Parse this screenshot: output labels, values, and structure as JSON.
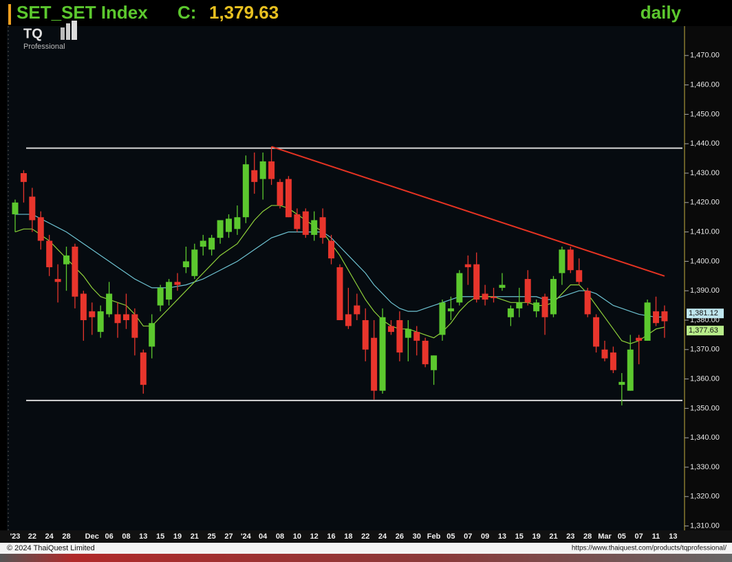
{
  "chart_data": {
    "type": "candlestick",
    "symbol": "SET_SET Index",
    "close_prefix": "C:",
    "last_close_label": "1,379.63",
    "timeframe": "daily",
    "logo": "TQ",
    "logo_sub": "Professional",
    "copyright": "© 2024 ThaiQuest Limited",
    "url": "https://www.thaiquest.com/products/tqprofessional/",
    "categories": [
      "'23",
      null,
      "22",
      null,
      "24",
      null,
      "28",
      null,
      null,
      "Dec",
      null,
      "06",
      null,
      "08",
      null,
      "13",
      null,
      "15",
      null,
      "19",
      null,
      "21",
      null,
      "25",
      null,
      "27",
      null,
      "'24",
      null,
      "04",
      null,
      "08",
      null,
      "10",
      null,
      "12",
      null,
      "16",
      null,
      "18",
      null,
      "22",
      null,
      "24",
      null,
      "26",
      null,
      "30",
      null,
      "Feb",
      null,
      "05",
      null,
      "07",
      null,
      "09",
      null,
      "13",
      null,
      "15",
      null,
      "19",
      null,
      "21",
      null,
      "23",
      null,
      "28",
      null,
      "Mar",
      null,
      "05",
      null,
      "07",
      null,
      "11",
      null,
      "13"
    ],
    "open": [
      1416,
      1430,
      1422,
      1415,
      1407,
      1394,
      1399,
      1405,
      1389,
      1383,
      1376,
      1382,
      1382,
      1382,
      1382,
      1369,
      1371,
      1385,
      1387,
      1393,
      1398,
      1395,
      1405,
      1404,
      1408,
      1410,
      1411,
      1415,
      1431,
      1428,
      1434,
      1427,
      1428,
      1416,
      1417,
      1409,
      1415,
      1407,
      1398,
      1382,
      1385,
      1380,
      1374,
      1356,
      1378,
      1380,
      1374,
      1376,
      1373,
      1363,
      1375,
      1383,
      1386,
      1399,
      1399,
      1389,
      1388,
      1391,
      1381,
      1384,
      1394,
      1383,
      1388,
      1382,
      1396,
      1404,
      1397,
      1390,
      1381,
      1370,
      1369,
      1358,
      1356,
      1374,
      1373,
      1383,
      1383,
      null
    ],
    "high": [
      1421,
      1431,
      1425,
      1417,
      1409,
      1399,
      1405,
      1406,
      1390,
      1386,
      1385,
      1393,
      1386,
      1389,
      1384,
      1370,
      1382,
      1392,
      1394,
      1396,
      1405,
      1406,
      1409,
      1409,
      1414,
      1416,
      1419,
      1436,
      1437,
      1437,
      1439,
      1428,
      1429,
      1418,
      1418,
      1417,
      1418,
      1409,
      1399,
      1391,
      1389,
      1384,
      1380,
      1384,
      1380,
      1383,
      1380,
      1378,
      1374,
      1368,
      1387,
      1388,
      1397,
      1402,
      1403,
      1392,
      1391,
      1396,
      1385,
      1391,
      1397,
      1387,
      1389,
      1395,
      1405,
      1405,
      1401,
      1391,
      1382,
      1373,
      1371,
      1362,
      1375,
      1375,
      1387,
      1388,
      1385,
      null
    ],
    "low": [
      1410,
      1420,
      1410,
      1404,
      1395,
      1386,
      1390,
      1384,
      1373,
      1375,
      1374,
      1381,
      1374,
      1377,
      1368,
      1355,
      1367,
      1383,
      1385,
      1390,
      1396,
      1394,
      1402,
      1402,
      1406,
      1408,
      1409,
      1413,
      1423,
      1421,
      1426,
      1418,
      1415,
      1410,
      1408,
      1407,
      1406,
      1399,
      1380,
      1377,
      1380,
      1366,
      1353,
      1355,
      1375,
      1366,
      1366,
      1368,
      1364,
      1358,
      1373,
      1380,
      1385,
      1392,
      1386,
      1385,
      1386,
      1390,
      1378,
      1381,
      1385,
      1381,
      1375,
      1381,
      1392,
      1396,
      1392,
      1381,
      1369,
      1366,
      1362,
      1351,
      1356,
      1365,
      1373,
      1378,
      1374,
      null
    ],
    "close": [
      1420,
      1427,
      1414,
      1407,
      1398,
      1393,
      1402,
      1388,
      1380,
      1381,
      1383,
      1389,
      1379,
      1380,
      1374,
      1358,
      1379,
      1391,
      1393,
      1392,
      1400,
      1404,
      1407,
      1408,
      1414,
      1414.5,
      1415,
      1433,
      1427,
      1434,
      1428,
      1419,
      1415,
      1411,
      1409,
      1414,
      1408,
      1401,
      1380,
      1378,
      1382,
      1370,
      1356,
      1381,
      1376,
      1369,
      1377,
      1373,
      1365,
      1368,
      1386,
      1384,
      1396,
      1398,
      1387,
      1387,
      1387.5,
      1392,
      1384,
      1386,
      1386,
      1386,
      1381,
      1394,
      1404,
      1397,
      1393,
      1382,
      1371,
      1367,
      1363,
      1359,
      1370,
      1373,
      1386,
      1379,
      1379.63,
      null
    ],
    "up_color": "#5cc82e",
    "down_color": "#e8352c",
    "series": [
      {
        "color": "#6ec3d2",
        "values": [
          1416,
          1416,
          1416,
          1414.5,
          1413,
          1411.5,
          1410,
          1408,
          1406,
          1404,
          1402,
          1400,
          1398,
          1396,
          1394,
          1392.5,
          1391,
          1391,
          1391,
          1391.5,
          1392,
          1393,
          1394,
          1395.5,
          1397,
          1398.5,
          1400,
          1402,
          1404,
          1406,
          1408,
          1409,
          1410,
          1410,
          1410,
          1410,
          1410,
          1408,
          1405,
          1402,
          1399,
          1396,
          1392,
          1389,
          1386,
          1384,
          1383,
          1383,
          1384,
          1385,
          1386,
          1387,
          1388,
          1388,
          1388,
          1388,
          1388,
          1388,
          1388,
          1388,
          1388,
          1388,
          1387,
          1387,
          1388,
          1389,
          1390,
          1390,
          1389,
          1387,
          1385,
          1384,
          1383,
          1382,
          1381.5,
          1381,
          1381.12,
          null
        ],
        "value_label": "1,381.12"
      },
      {
        "color": "#8fd13a",
        "values": [
          1410,
          1411,
          1411,
          1409,
          1407,
          1404,
          1401,
          1398,
          1395,
          1391,
          1388,
          1387,
          1386,
          1385,
          1382,
          1378,
          1378,
          1381,
          1384,
          1387,
          1390,
          1393,
          1396,
          1399,
          1402,
          1404,
          1406,
          1410,
          1414,
          1417,
          1419,
          1419,
          1418,
          1416,
          1414,
          1412,
          1410,
          1406,
          1402,
          1397,
          1392,
          1387,
          1383,
          1380,
          1378,
          1377,
          1377,
          1376,
          1375,
          1374,
          1376,
          1379,
          1383,
          1386,
          1388,
          1388,
          1388,
          1387,
          1386,
          1386,
          1386,
          1385,
          1385,
          1386,
          1389,
          1392,
          1392,
          1389,
          1385,
          1381,
          1377,
          1373,
          1372,
          1373,
          1375,
          1377,
          1377.63,
          null
        ],
        "value_label": "1,377.63"
      }
    ],
    "levels": [
      1438.5,
      1352.7
    ],
    "trendline": {
      "start_index": 30,
      "start_value": 1439,
      "end_index": 76,
      "end_value": 1395,
      "color": "#e63322"
    },
    "ylim": [
      1308.5,
      1480
    ],
    "yticks": [
      {
        "value": 1310,
        "label": "1,310.00"
      },
      {
        "value": 1320,
        "label": "1,320.00"
      },
      {
        "value": 1330,
        "label": "1,330.00"
      },
      {
        "value": 1340,
        "label": "1,340.00"
      },
      {
        "value": 1350,
        "label": "1,350.00"
      },
      {
        "value": 1360,
        "label": "1,360.00"
      },
      {
        "value": 1370,
        "label": "1,370.00"
      },
      {
        "value": 1380,
        "label": "1,380.00"
      },
      {
        "value": 1390,
        "label": "1,390.00"
      },
      {
        "value": 1400,
        "label": "1,400.00"
      },
      {
        "value": 1410,
        "label": "1,410.00"
      },
      {
        "value": 1420,
        "label": "1,420.00"
      },
      {
        "value": 1430,
        "label": "1,430.00"
      },
      {
        "value": 1440,
        "label": "1,440.00"
      },
      {
        "value": 1450,
        "label": "1,450.00"
      },
      {
        "value": 1460,
        "label": "1,460.00"
      },
      {
        "value": 1470,
        "label": "1,470.00"
      }
    ]
  }
}
